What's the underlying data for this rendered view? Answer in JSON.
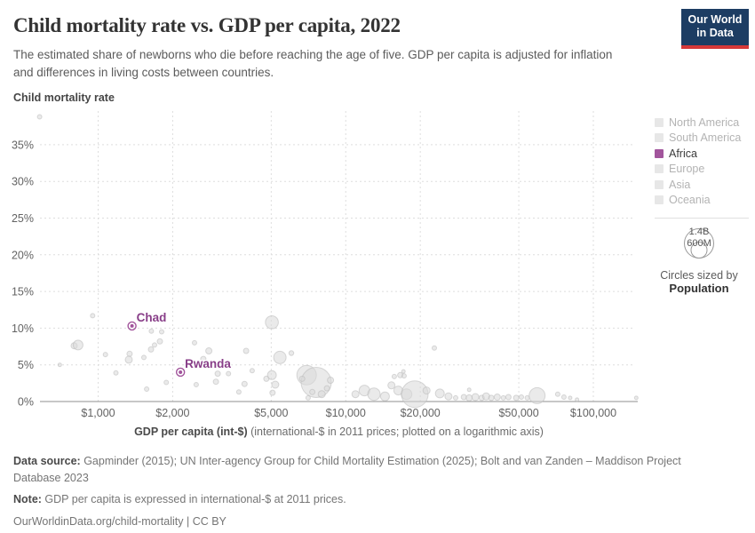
{
  "header": {
    "title": "Child mortality rate vs. GDP per capita, 2022",
    "subtitle": "The estimated share of newborns who die before reaching the age of five. GDP per capita is adjusted for inflation and differences in living costs between countries.",
    "logo": {
      "line1": "Our World",
      "line2": "in Data",
      "bg": "#1d3d63",
      "accent": "#d63838"
    }
  },
  "legend": {
    "items": [
      {
        "label": "North America",
        "active": false
      },
      {
        "label": "South America",
        "active": false
      },
      {
        "label": "Africa",
        "active": true
      },
      {
        "label": "Europe",
        "active": false
      },
      {
        "label": "Asia",
        "active": false
      },
      {
        "label": "Oceania",
        "active": false
      }
    ],
    "active_color": "#a2559c",
    "inactive_swatch": "#e7e7e7",
    "inactive_text": "#b3b3b3",
    "active_text": "#3b3b3b",
    "size_legend": {
      "big_label": "1.4B",
      "small_label": "600M",
      "caption": "Circles sized by",
      "caption_bold": "Population"
    }
  },
  "chart_data": {
    "type": "scatter",
    "title": "Child mortality rate",
    "x_axis": {
      "scale": "log",
      "label_bold": "GDP per capita (int-$)",
      "label_rest": " (international-$ in 2011 prices; plotted on a logarithmic axis)",
      "tick_values": [
        1000,
        2000,
        5000,
        10000,
        20000,
        50000,
        100000
      ],
      "tick_labels": [
        "$1,000",
        "$2,000",
        "$5,000",
        "$10,000",
        "$20,000",
        "$50,000",
        "$100,000"
      ]
    },
    "y_axis": {
      "label": "Child mortality rate",
      "tick_values": [
        0,
        5,
        10,
        15,
        20,
        25,
        30,
        35
      ],
      "tick_labels": [
        "0%",
        "5%",
        "10%",
        "15%",
        "20%",
        "25%",
        "30%",
        "35%"
      ],
      "range": [
        0,
        39.5
      ]
    },
    "highlight_color": "#a2559c",
    "highlight_label_color": "#883e88",
    "labeled_points": [
      {
        "name": "Chad",
        "gdp": 1370,
        "mortality": 10.3
      },
      {
        "name": "Rwanda",
        "gdp": 2150,
        "mortality": 4.0
      }
    ],
    "background_points_format": "[gdp_int_dollars, mortality_pct, radius_px]",
    "background_points": [
      [
        580,
        38.8,
        2.5
      ],
      [
        700,
        5.0,
        2
      ],
      [
        800,
        7.6,
        3.5
      ],
      [
        830,
        7.7,
        5.5
      ],
      [
        950,
        11.7,
        2.5
      ],
      [
        1070,
        6.4,
        2.5
      ],
      [
        1340,
        6.5,
        3
      ],
      [
        1330,
        5.7,
        4
      ],
      [
        1180,
        3.9,
        2.5
      ],
      [
        1570,
        1.7,
        2.5
      ],
      [
        1640,
        9.6,
        2.5
      ],
      [
        1635,
        7.1,
        3
      ],
      [
        1530,
        6.0,
        2.5
      ],
      [
        1805,
        9.5,
        2.5
      ],
      [
        1775,
        8.2,
        3
      ],
      [
        1690,
        7.7,
        2.5
      ],
      [
        1885,
        2.6,
        2.5
      ],
      [
        2450,
        8.0,
        2.5
      ],
      [
        2800,
        6.9,
        3.5
      ],
      [
        2660,
        5.8,
        3
      ],
      [
        2490,
        2.3,
        2.5
      ],
      [
        3040,
        3.8,
        3
      ],
      [
        3360,
        3.8,
        2.5
      ],
      [
        2990,
        2.7,
        3
      ],
      [
        3960,
        6.9,
        3
      ],
      [
        4190,
        4.2,
        2.5
      ],
      [
        3900,
        2.4,
        3
      ],
      [
        3700,
        1.3,
        2.5
      ],
      [
        4780,
        3.1,
        3
      ],
      [
        5030,
        3.6,
        5
      ],
      [
        5420,
        6.0,
        7
      ],
      [
        5190,
        2.3,
        4
      ],
      [
        5060,
        1.2,
        3
      ],
      [
        6030,
        6.6,
        2.7
      ],
      [
        5030,
        10.8,
        7.3
      ],
      [
        6950,
        3.6,
        11
      ],
      [
        7600,
        2.6,
        17
      ],
      [
        6670,
        3.1,
        3
      ],
      [
        7330,
        1.3,
        3
      ],
      [
        8000,
        1.0,
        4
      ],
      [
        7050,
        0.5,
        2.5
      ],
      [
        8400,
        1.8,
        3
      ],
      [
        8680,
        2.9,
        3.5
      ],
      [
        10950,
        1.0,
        4
      ],
      [
        11900,
        1.5,
        6
      ],
      [
        13000,
        1.0,
        7
      ],
      [
        14400,
        0.7,
        5
      ],
      [
        15700,
        3.4,
        2.5
      ],
      [
        16600,
        3.6,
        3
      ],
      [
        17200,
        3.5,
        2.5
      ],
      [
        17100,
        4.1,
        2
      ],
      [
        15300,
        2.2,
        4
      ],
      [
        16300,
        1.5,
        5
      ],
      [
        17600,
        1.0,
        6
      ],
      [
        19000,
        1.0,
        15
      ],
      [
        21200,
        1.5,
        4
      ],
      [
        22800,
        7.3,
        2.5
      ],
      [
        24000,
        1.1,
        5
      ],
      [
        26000,
        0.7,
        4
      ],
      [
        27800,
        0.5,
        2.5
      ],
      [
        30000,
        0.6,
        3
      ],
      [
        31500,
        1.6,
        2
      ],
      [
        31500,
        0.5,
        3.5
      ],
      [
        33400,
        0.6,
        4
      ],
      [
        35400,
        0.5,
        3
      ],
      [
        36900,
        0.7,
        4
      ],
      [
        38700,
        0.5,
        3
      ],
      [
        40900,
        0.6,
        3.5
      ],
      [
        43300,
        0.5,
        2.5
      ],
      [
        45400,
        0.6,
        3
      ],
      [
        48800,
        0.5,
        3
      ],
      [
        51200,
        0.6,
        2.5
      ],
      [
        54100,
        0.5,
        2.5
      ],
      [
        59300,
        0.8,
        9
      ],
      [
        71800,
        1.0,
        2.5
      ],
      [
        76100,
        0.6,
        2.5
      ],
      [
        80600,
        0.5,
        2
      ],
      [
        85900,
        0.25,
        2
      ],
      [
        149000,
        0.5,
        2
      ]
    ]
  },
  "footer": {
    "data_source_label": "Data source:",
    "data_source_text": " Gapminder (2015); UN Inter-agency Group for Child Mortality Estimation (2025); Bolt and van Zanden – Maddison Project Database 2023",
    "note_label": "Note:",
    "note_text": " GDP per capita is expressed in international-$ at 2011 prices.",
    "citation": "OurWorldinData.org/child-mortality | CC BY"
  }
}
